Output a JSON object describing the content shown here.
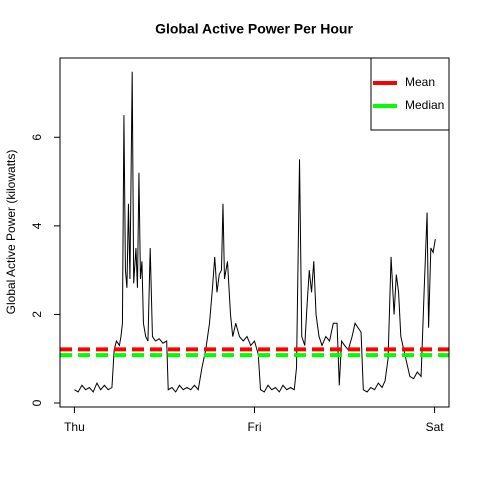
{
  "chart_data": {
    "type": "line",
    "title": "Global Active Power Per Hour",
    "ylabel": "Global Active Power (kilowatts)",
    "color": "#000000",
    "x": [
      0,
      0.5,
      1,
      1.5,
      2,
      2.5,
      3,
      3.5,
      4,
      4.5,
      5,
      5.3,
      5.6,
      6,
      6.2,
      6.4,
      6.6,
      6.8,
      7.0,
      7.2,
      7.4,
      7.7,
      7.9,
      8.2,
      8.4,
      8.6,
      8.8,
      9.0,
      9.2,
      9.5,
      9.8,
      10.1,
      10.4,
      10.8,
      11.3,
      11.8,
      12.3,
      12.5,
      13,
      13.5,
      14,
      14.5,
      15,
      15.5,
      16,
      16.5,
      17,
      17.5,
      18,
      18.4,
      18.7,
      19,
      19.3,
      19.6,
      19.8,
      20,
      20.4,
      20.8,
      21.1,
      21.5,
      22,
      22.5,
      23,
      23.5,
      24,
      24.5,
      24.8,
      25.3,
      25.8,
      26.3,
      26.8,
      27.3,
      27.8,
      28.3,
      28.8,
      29.3,
      29.6,
      30.0,
      30.3,
      30.7,
      31,
      31.3,
      31.6,
      31.9,
      32.2,
      32.6,
      33,
      33.5,
      34,
      34.5,
      35,
      35.3,
      35.6,
      36,
      36.5,
      37,
      37.4,
      37.8,
      38.2,
      38.5,
      39,
      39.5,
      40,
      40.5,
      41,
      41.4,
      41.8,
      42.2,
      42.6,
      42.9,
      43.2,
      43.5,
      43.9,
      44.3,
      44.7,
      45.2,
      45.7,
      46.2,
      46.6,
      47.0,
      47.2,
      47.5,
      47.8,
      48.1
    ],
    "values": [
      0.3,
      0.25,
      0.4,
      0.3,
      0.35,
      0.25,
      0.45,
      0.3,
      0.4,
      0.3,
      0.35,
      1.2,
      1.4,
      1.3,
      1.5,
      1.8,
      6.5,
      3.0,
      2.6,
      4.5,
      2.8,
      7.48,
      2.7,
      3.5,
      2.6,
      5.2,
      2.8,
      3.2,
      1.8,
      1.5,
      1.4,
      3.5,
      1.5,
      1.4,
      1.45,
      1.35,
      1.4,
      0.3,
      0.35,
      0.25,
      0.4,
      0.3,
      0.35,
      0.3,
      0.4,
      0.3,
      0.8,
      1.2,
      1.8,
      2.6,
      3.3,
      2.5,
      2.9,
      3.0,
      4.5,
      2.8,
      3.2,
      2.0,
      1.5,
      1.8,
      1.5,
      1.4,
      1.5,
      1.3,
      1.4,
      1.1,
      0.3,
      0.25,
      0.4,
      0.3,
      0.35,
      0.25,
      0.4,
      0.3,
      0.35,
      0.3,
      0.8,
      5.5,
      1.5,
      1.3,
      2.2,
      3.0,
      2.5,
      3.2,
      2.0,
      1.5,
      1.3,
      1.5,
      1.4,
      1.8,
      1.8,
      0.4,
      1.4,
      1.3,
      1.2,
      1.5,
      1.8,
      1.7,
      1.6,
      0.3,
      0.25,
      0.35,
      0.3,
      0.45,
      0.35,
      0.5,
      1.0,
      3.3,
      2.0,
      2.9,
      2.5,
      1.5,
      1.2,
      0.9,
      0.6,
      0.55,
      0.7,
      0.6,
      2.5,
      4.3,
      1.7,
      3.5,
      3.4,
      3.7
    ],
    "xlim": [
      -1.92,
      49.92
    ],
    "xticks": [
      {
        "value": 0,
        "label": "Thu"
      },
      {
        "value": 24,
        "label": "Fri"
      },
      {
        "value": 48,
        "label": "Sat"
      }
    ],
    "ylim": [
      -0.09,
      7.79
    ],
    "yticks": [
      0,
      2,
      4,
      6
    ],
    "lines": [
      {
        "name": "Mean",
        "value": 1.21,
        "color": "#ff0000"
      },
      {
        "name": "Median",
        "value": 1.08,
        "color": "#00ff00"
      }
    ],
    "legend": "topright"
  }
}
